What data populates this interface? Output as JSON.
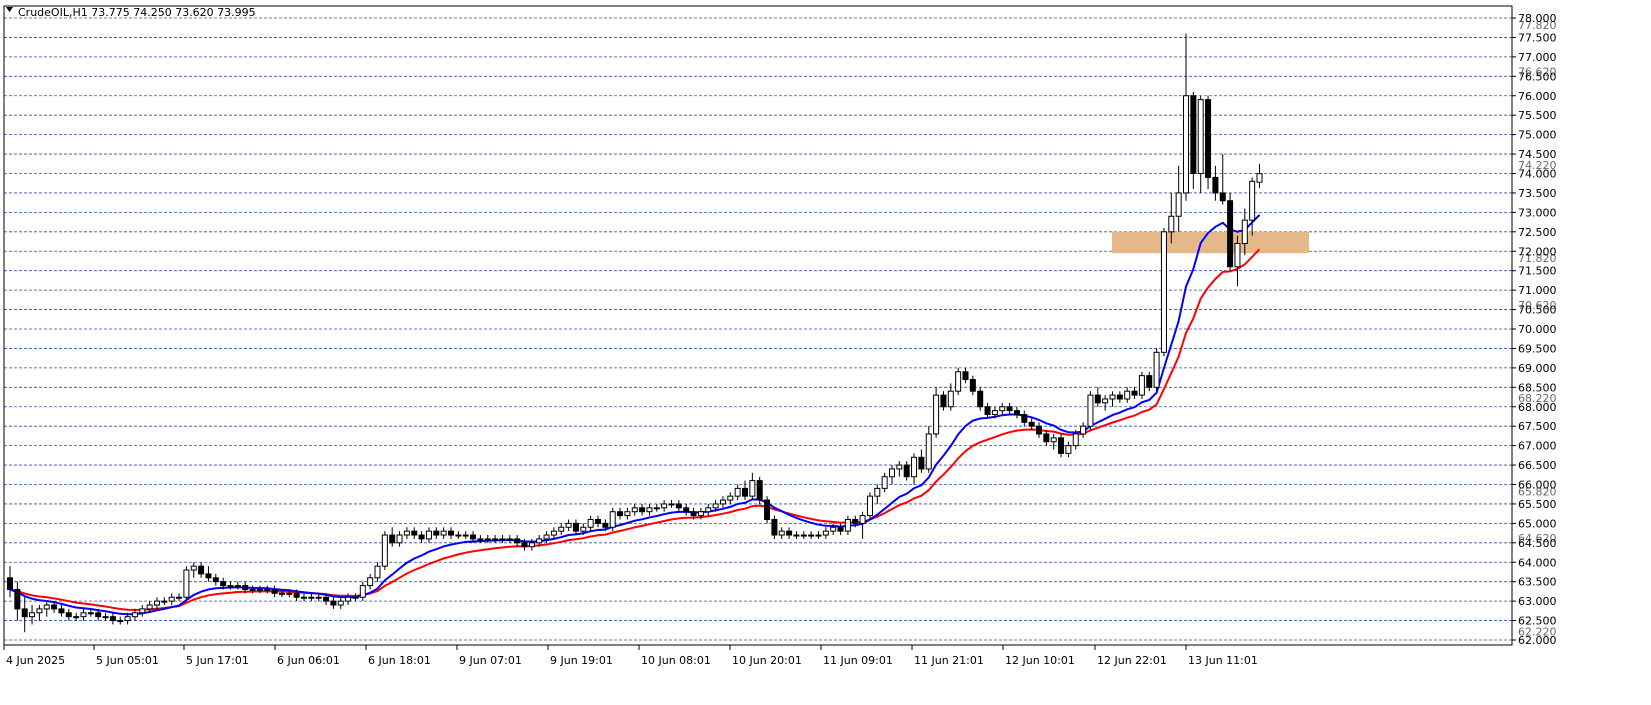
{
  "header": {
    "symbol_line": "CrudeOIL,H1  73.775 74.250 73.620 73.995",
    "menu_icon": "triangle-down-icon"
  },
  "colors": {
    "background": "#ffffff",
    "grid": "#2a4fb0",
    "axis": "#000000",
    "ema_fast": "#0000ff",
    "ema_slow": "#ff0000",
    "zone": "#e5b88a",
    "bull_candle_fill": "#ffffff",
    "bear_candle_fill": "#000000"
  },
  "chart_data": {
    "type": "candlestick",
    "symbol": "CrudeOIL",
    "timeframe": "H1",
    "last_bar": {
      "open": 73.775,
      "high": 74.25,
      "low": 73.62,
      "close": 73.995
    },
    "ylim": [
      61.9,
      78.15
    ],
    "grid": "horizontal dashed",
    "y_ticks": [
      "78.000",
      "77.500",
      "77.000",
      "76.500",
      "76.000",
      "75.500",
      "75.000",
      "74.500",
      "74.000",
      "73.500",
      "73.000",
      "72.500",
      "72.000",
      "71.500",
      "71.000",
      "70.500",
      "70.000",
      "69.500",
      "69.000",
      "68.500",
      "68.000",
      "67.500",
      "67.000",
      "66.500",
      "66.000",
      "65.500",
      "65.000",
      "64.500",
      "64.000",
      "63.500",
      "63.000",
      "62.500",
      "62.000"
    ],
    "y_hidden_labels": [
      "77.820",
      "76.620",
      "74.220",
      "71.820",
      "70.620",
      "68.220",
      "65.820",
      "64.620",
      "62.220"
    ],
    "x_labels": [
      "4 Jun 2025",
      "5 Jun 05:01",
      "5 Jun 17:01",
      "6 Jun 06:01",
      "6 Jun 18:01",
      "9 Jun 07:01",
      "9 Jun 19:01",
      "10 Jun 08:01",
      "10 Jun 20:01",
      "11 Jun 09:01",
      "11 Jun 21:01",
      "12 Jun 10:01",
      "12 Jun 22:01",
      "13 Jun 11:01"
    ],
    "resistance_zone": {
      "low": 71.95,
      "high": 72.5
    },
    "candles_note": "OHLC values read from the chart, H1 bars",
    "candles": [
      [
        63.6,
        63.9,
        63.1,
        63.3
      ],
      [
        63.3,
        63.5,
        62.5,
        62.8
      ],
      [
        62.8,
        63.1,
        62.2,
        62.6
      ],
      [
        62.6,
        62.9,
        62.4,
        62.7
      ],
      [
        62.7,
        62.9,
        62.5,
        62.8
      ],
      [
        62.8,
        63.0,
        62.6,
        62.9
      ],
      [
        62.9,
        63.0,
        62.7,
        62.8
      ],
      [
        62.8,
        62.9,
        62.6,
        62.7
      ],
      [
        62.7,
        62.8,
        62.5,
        62.6
      ],
      [
        62.6,
        62.7,
        62.5,
        62.6
      ],
      [
        62.6,
        62.8,
        62.5,
        62.7
      ],
      [
        62.7,
        62.8,
        62.6,
        62.7
      ],
      [
        62.7,
        62.8,
        62.5,
        62.6
      ],
      [
        62.6,
        62.7,
        62.5,
        62.6
      ],
      [
        62.6,
        62.7,
        62.4,
        62.5
      ],
      [
        62.5,
        62.6,
        62.4,
        62.5
      ],
      [
        62.5,
        62.7,
        62.4,
        62.6
      ],
      [
        62.6,
        62.8,
        62.5,
        62.7
      ],
      [
        62.7,
        62.9,
        62.6,
        62.8
      ],
      [
        62.8,
        63.0,
        62.7,
        62.9
      ],
      [
        62.9,
        63.1,
        62.8,
        63.0
      ],
      [
        63.0,
        63.1,
        62.9,
        63.0
      ],
      [
        63.0,
        63.2,
        62.9,
        63.1
      ],
      [
        63.1,
        63.2,
        63.0,
        63.1
      ],
      [
        63.1,
        63.9,
        63.0,
        63.8
      ],
      [
        63.8,
        64.0,
        63.6,
        63.9
      ],
      [
        63.9,
        64.0,
        63.6,
        63.7
      ],
      [
        63.7,
        63.9,
        63.5,
        63.6
      ],
      [
        63.6,
        63.7,
        63.4,
        63.5
      ],
      [
        63.5,
        63.6,
        63.3,
        63.4
      ],
      [
        63.4,
        63.5,
        63.3,
        63.4
      ],
      [
        63.4,
        63.5,
        63.3,
        63.4
      ],
      [
        63.4,
        63.5,
        63.2,
        63.3
      ],
      [
        63.3,
        63.4,
        63.2,
        63.3
      ],
      [
        63.3,
        63.4,
        63.2,
        63.3
      ],
      [
        63.3,
        63.4,
        63.2,
        63.3
      ],
      [
        63.3,
        63.4,
        63.1,
        63.2
      ],
      [
        63.2,
        63.3,
        63.1,
        63.2
      ],
      [
        63.2,
        63.3,
        63.1,
        63.2
      ],
      [
        63.2,
        63.3,
        63.0,
        63.1
      ],
      [
        63.1,
        63.2,
        63.0,
        63.1
      ],
      [
        63.1,
        63.2,
        63.0,
        63.1
      ],
      [
        63.1,
        63.2,
        63.0,
        63.1
      ],
      [
        63.1,
        63.2,
        62.9,
        63.0
      ],
      [
        63.0,
        63.1,
        62.8,
        62.9
      ],
      [
        62.9,
        63.1,
        62.8,
        63.0
      ],
      [
        63.0,
        63.2,
        62.9,
        63.1
      ],
      [
        63.1,
        63.2,
        63.0,
        63.1
      ],
      [
        63.1,
        63.5,
        63.0,
        63.4
      ],
      [
        63.4,
        63.7,
        63.3,
        63.6
      ],
      [
        63.6,
        64.0,
        63.5,
        63.9
      ],
      [
        63.9,
        64.8,
        63.8,
        64.7
      ],
      [
        64.7,
        64.9,
        64.4,
        64.5
      ],
      [
        64.5,
        64.8,
        64.4,
        64.7
      ],
      [
        64.7,
        64.9,
        64.6,
        64.8
      ],
      [
        64.8,
        64.9,
        64.6,
        64.7
      ],
      [
        64.7,
        64.8,
        64.5,
        64.6
      ],
      [
        64.6,
        64.9,
        64.5,
        64.8
      ],
      [
        64.8,
        64.9,
        64.6,
        64.7
      ],
      [
        64.7,
        64.9,
        64.6,
        64.8
      ],
      [
        64.8,
        64.9,
        64.6,
        64.7
      ],
      [
        64.7,
        64.8,
        64.6,
        64.7
      ],
      [
        64.7,
        64.8,
        64.6,
        64.7
      ],
      [
        64.7,
        64.8,
        64.5,
        64.6
      ],
      [
        64.6,
        64.7,
        64.5,
        64.6
      ],
      [
        64.6,
        64.7,
        64.5,
        64.6
      ],
      [
        64.6,
        64.7,
        64.5,
        64.6
      ],
      [
        64.6,
        64.7,
        64.5,
        64.6
      ],
      [
        64.6,
        64.7,
        64.5,
        64.6
      ],
      [
        64.6,
        64.7,
        64.4,
        64.5
      ],
      [
        64.5,
        64.6,
        64.3,
        64.4
      ],
      [
        64.4,
        64.6,
        64.3,
        64.5
      ],
      [
        64.5,
        64.7,
        64.4,
        64.6
      ],
      [
        64.6,
        64.8,
        64.5,
        64.7
      ],
      [
        64.7,
        64.9,
        64.6,
        64.8
      ],
      [
        64.8,
        65.0,
        64.7,
        64.9
      ],
      [
        64.9,
        65.1,
        64.8,
        65.0
      ],
      [
        65.0,
        65.1,
        64.7,
        64.8
      ],
      [
        64.8,
        65.0,
        64.7,
        64.9
      ],
      [
        64.9,
        65.2,
        64.8,
        65.1
      ],
      [
        65.1,
        65.2,
        64.9,
        65.0
      ],
      [
        65.0,
        65.1,
        64.8,
        64.9
      ],
      [
        64.9,
        65.4,
        64.8,
        65.3
      ],
      [
        65.3,
        65.4,
        65.1,
        65.2
      ],
      [
        65.2,
        65.4,
        65.1,
        65.3
      ],
      [
        65.3,
        65.5,
        65.2,
        65.4
      ],
      [
        65.4,
        65.5,
        65.2,
        65.3
      ],
      [
        65.3,
        65.5,
        65.2,
        65.4
      ],
      [
        65.4,
        65.5,
        65.3,
        65.4
      ],
      [
        65.4,
        65.6,
        65.3,
        65.5
      ],
      [
        65.5,
        65.6,
        65.4,
        65.5
      ],
      [
        65.5,
        65.6,
        65.3,
        65.4
      ],
      [
        65.4,
        65.5,
        65.2,
        65.3
      ],
      [
        65.3,
        65.4,
        65.1,
        65.2
      ],
      [
        65.2,
        65.4,
        65.1,
        65.3
      ],
      [
        65.3,
        65.5,
        65.2,
        65.4
      ],
      [
        65.4,
        65.6,
        65.3,
        65.5
      ],
      [
        65.5,
        65.7,
        65.4,
        65.6
      ],
      [
        65.6,
        65.8,
        65.5,
        65.7
      ],
      [
        65.7,
        66.0,
        65.6,
        65.9
      ],
      [
        65.9,
        66.1,
        65.6,
        65.7
      ],
      [
        65.7,
        66.3,
        65.6,
        66.1
      ],
      [
        66.1,
        66.2,
        65.5,
        65.6
      ],
      [
        65.6,
        65.7,
        65.0,
        65.1
      ],
      [
        65.1,
        65.2,
        64.6,
        64.7
      ],
      [
        64.7,
        64.9,
        64.6,
        64.8
      ],
      [
        64.8,
        64.9,
        64.6,
        64.7
      ],
      [
        64.7,
        64.8,
        64.6,
        64.7
      ],
      [
        64.7,
        64.8,
        64.6,
        64.7
      ],
      [
        64.7,
        64.8,
        64.6,
        64.7
      ],
      [
        64.7,
        64.8,
        64.6,
        64.7
      ],
      [
        64.7,
        64.9,
        64.6,
        64.8
      ],
      [
        64.8,
        65.0,
        64.7,
        64.9
      ],
      [
        64.9,
        65.0,
        64.7,
        64.8
      ],
      [
        64.8,
        65.2,
        64.7,
        65.1
      ],
      [
        65.1,
        65.2,
        64.9,
        65.0
      ],
      [
        65.0,
        65.3,
        64.6,
        65.2
      ],
      [
        65.2,
        65.8,
        65.1,
        65.7
      ],
      [
        65.7,
        66.0,
        65.5,
        65.9
      ],
      [
        65.9,
        66.3,
        65.8,
        66.2
      ],
      [
        66.2,
        66.5,
        66.0,
        66.4
      ],
      [
        66.4,
        66.6,
        66.2,
        66.5
      ],
      [
        66.5,
        66.6,
        66.1,
        66.2
      ],
      [
        66.2,
        66.8,
        66.0,
        66.7
      ],
      [
        66.7,
        66.9,
        66.3,
        66.4
      ],
      [
        66.4,
        67.5,
        66.3,
        67.3
      ],
      [
        67.3,
        68.5,
        67.2,
        68.3
      ],
      [
        68.3,
        68.4,
        67.9,
        68.0
      ],
      [
        68.0,
        68.6,
        67.9,
        68.4
      ],
      [
        68.4,
        69.0,
        68.3,
        68.9
      ],
      [
        68.9,
        69.0,
        68.6,
        68.7
      ],
      [
        68.7,
        68.8,
        68.3,
        68.4
      ],
      [
        68.4,
        68.5,
        67.9,
        68.0
      ],
      [
        68.0,
        68.1,
        67.7,
        67.8
      ],
      [
        67.8,
        68.0,
        67.7,
        67.9
      ],
      [
        67.9,
        68.1,
        67.8,
        68.0
      ],
      [
        68.0,
        68.1,
        67.8,
        67.9
      ],
      [
        67.9,
        68.0,
        67.7,
        67.8
      ],
      [
        67.8,
        67.9,
        67.5,
        67.6
      ],
      [
        67.6,
        67.7,
        67.4,
        67.5
      ],
      [
        67.5,
        67.6,
        67.2,
        67.3
      ],
      [
        67.3,
        67.4,
        67.0,
        67.1
      ],
      [
        67.1,
        67.3,
        66.9,
        67.2
      ],
      [
        67.2,
        67.3,
        66.7,
        66.8
      ],
      [
        66.8,
        67.1,
        66.7,
        67.0
      ],
      [
        67.0,
        67.4,
        66.9,
        67.3
      ],
      [
        67.3,
        67.6,
        67.2,
        67.5
      ],
      [
        67.5,
        68.4,
        67.4,
        68.3
      ],
      [
        68.3,
        68.5,
        68.0,
        68.1
      ],
      [
        68.1,
        68.3,
        67.9,
        68.2
      ],
      [
        68.2,
        68.4,
        68.0,
        68.3
      ],
      [
        68.3,
        68.4,
        68.1,
        68.2
      ],
      [
        68.2,
        68.5,
        68.1,
        68.4
      ],
      [
        68.4,
        68.5,
        68.2,
        68.3
      ],
      [
        68.3,
        68.9,
        68.2,
        68.8
      ],
      [
        68.8,
        68.9,
        68.4,
        68.5
      ],
      [
        68.5,
        69.5,
        68.4,
        69.4
      ],
      [
        69.4,
        72.6,
        69.3,
        72.5
      ],
      [
        72.5,
        73.5,
        72.2,
        72.9
      ],
      [
        72.9,
        74.2,
        72.5,
        73.5
      ],
      [
        73.5,
        77.6,
        73.3,
        76.0
      ],
      [
        76.0,
        76.1,
        73.6,
        74.0
      ],
      [
        74.0,
        76.0,
        73.5,
        75.9
      ],
      [
        75.9,
        76.0,
        73.6,
        73.9
      ],
      [
        73.9,
        74.2,
        73.3,
        73.5
      ],
      [
        73.5,
        74.5,
        73.2,
        73.3
      ],
      [
        73.3,
        73.5,
        71.5,
        71.6
      ],
      [
        71.6,
        72.4,
        71.1,
        72.2
      ],
      [
        72.2,
        73.1,
        71.9,
        72.8
      ],
      [
        72.8,
        73.9,
        72.4,
        73.8
      ],
      [
        73.775,
        74.25,
        73.62,
        73.995
      ]
    ],
    "series": [
      {
        "name": "",
        "color": "#0000ff",
        "values": []
      },
      {
        "name": "",
        "color": "#ff0000",
        "values": []
      }
    ]
  }
}
